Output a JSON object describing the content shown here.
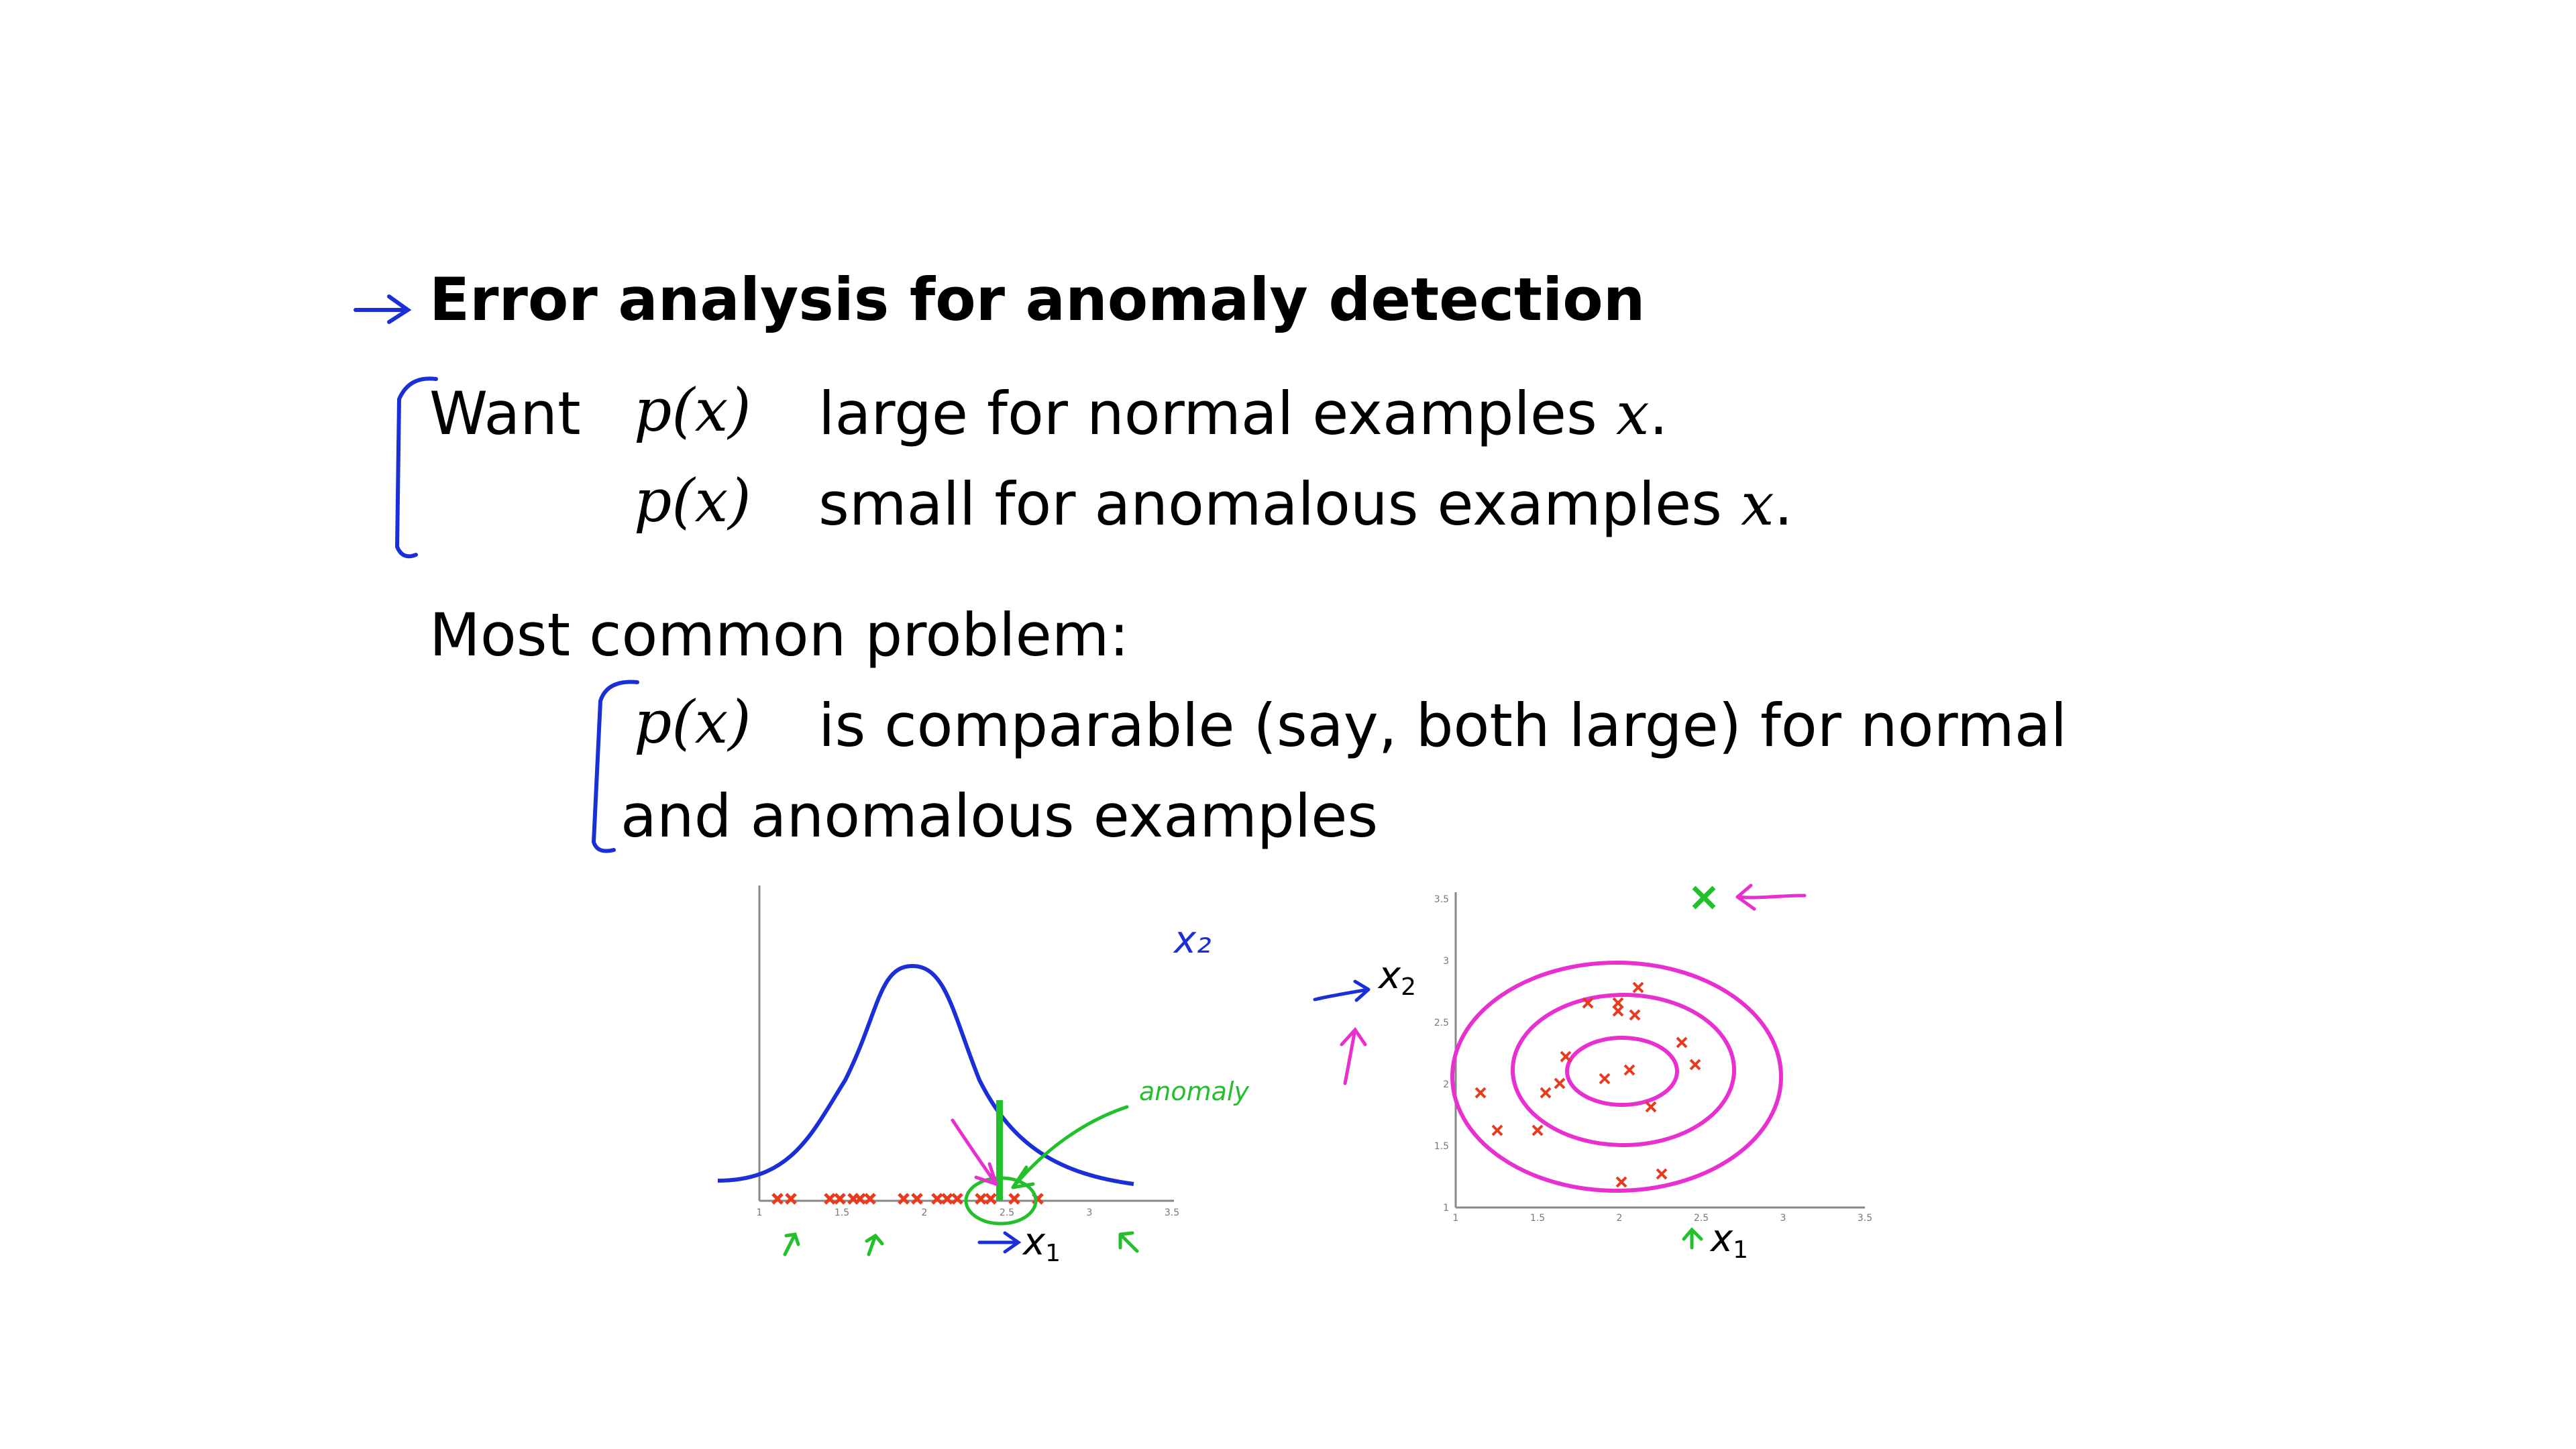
{
  "slide": {
    "title": "Error analysis for anomaly detection",
    "want_label": "Want",
    "px": "p(x)",
    "line1_text": "large for normal examples",
    "line2_text": "small for anomalous examples",
    "x_var": "x",
    "period": ".",
    "problem_heading": "Most common problem:",
    "problem_line1": "is comparable (say, both large) for normal",
    "problem_line2": "and anomalous examples"
  },
  "plot_1d": {
    "xlabel": "x",
    "xlabel_sub": "1",
    "annotation_x2": "x₂",
    "annotation_anomaly": "anomaly",
    "x_ticks": [
      "1",
      "1.5",
      "2",
      "2.5",
      "3",
      "3.5"
    ]
  },
  "plot_2d": {
    "xlabel": "x",
    "xlabel_sub": "1",
    "ylabel": "x",
    "ylabel_sub": "2",
    "x_ticks": [
      "1",
      "1.5",
      "2",
      "2.5",
      "3",
      "3.5"
    ],
    "y_ticks": [
      "1",
      "1.5",
      "2",
      "2.5",
      "3",
      "3.5"
    ]
  },
  "colors": {
    "blue_ink": "#1b2fd6",
    "green_ink": "#22c02a",
    "pink_ink": "#e82fd0",
    "red_marker": "#e83a1e",
    "text": "#000000"
  }
}
